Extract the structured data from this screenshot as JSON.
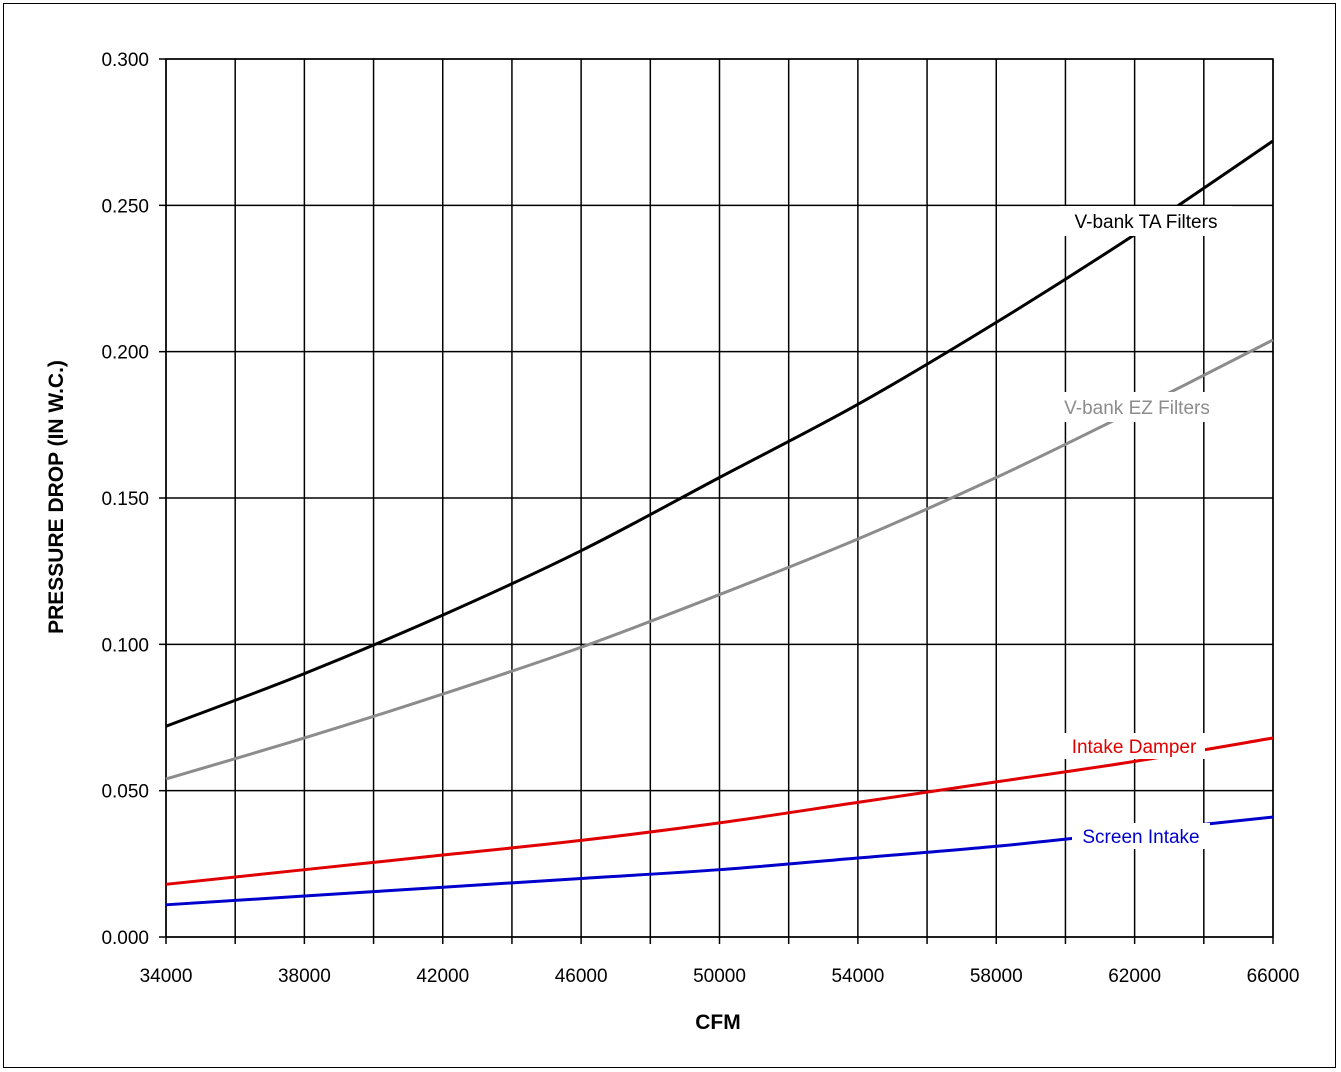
{
  "chart_data": {
    "type": "line",
    "title": "",
    "xlabel": "CFM",
    "ylabel": "PRESSURE DROP (IN W.C.)",
    "xlim": [
      34000,
      66000
    ],
    "ylim": [
      0.0,
      0.3
    ],
    "x_major_ticks": [
      34000,
      38000,
      42000,
      46000,
      50000,
      54000,
      58000,
      62000,
      66000
    ],
    "x_major_tick_labels": [
      "34000",
      "38000",
      "42000",
      "46000",
      "50000",
      "54000",
      "58000",
      "62000",
      "66000"
    ],
    "x_gridlines": [
      34000,
      36000,
      38000,
      40000,
      42000,
      44000,
      46000,
      48000,
      50000,
      52000,
      54000,
      56000,
      58000,
      60000,
      62000,
      64000,
      66000
    ],
    "y_ticks": [
      0.0,
      0.05,
      0.1,
      0.15,
      0.2,
      0.25,
      0.3
    ],
    "y_tick_labels": [
      "0.000",
      "0.050",
      "0.100",
      "0.150",
      "0.200",
      "0.250",
      "0.300"
    ],
    "grid": true,
    "legend": "inline labels on curves",
    "series": [
      {
        "name": "V-bank TA Filters",
        "color": "#000000",
        "x": [
          34000,
          38000,
          42000,
          46000,
          50000,
          54000,
          58000,
          62000,
          66000
        ],
        "y": [
          0.072,
          0.09,
          0.11,
          0.132,
          0.157,
          0.182,
          0.21,
          0.24,
          0.272
        ]
      },
      {
        "name": "V-bank EZ Filters",
        "color": "#8c8c8c",
        "x": [
          34000,
          38000,
          42000,
          46000,
          50000,
          54000,
          58000,
          62000,
          66000
        ],
        "y": [
          0.054,
          0.068,
          0.083,
          0.099,
          0.117,
          0.136,
          0.157,
          0.18,
          0.204
        ]
      },
      {
        "name": "Intake Damper",
        "color": "#e00000",
        "x": [
          34000,
          38000,
          42000,
          46000,
          50000,
          54000,
          58000,
          62000,
          66000
        ],
        "y": [
          0.018,
          0.023,
          0.028,
          0.033,
          0.039,
          0.046,
          0.053,
          0.06,
          0.068
        ]
      },
      {
        "name": "Screen Intake",
        "color": "#0000cc",
        "x": [
          34000,
          38000,
          42000,
          46000,
          50000,
          54000,
          58000,
          62000,
          66000
        ],
        "y": [
          0.011,
          0.014,
          0.017,
          0.02,
          0.023,
          0.027,
          0.031,
          0.036,
          0.041
        ]
      }
    ]
  }
}
